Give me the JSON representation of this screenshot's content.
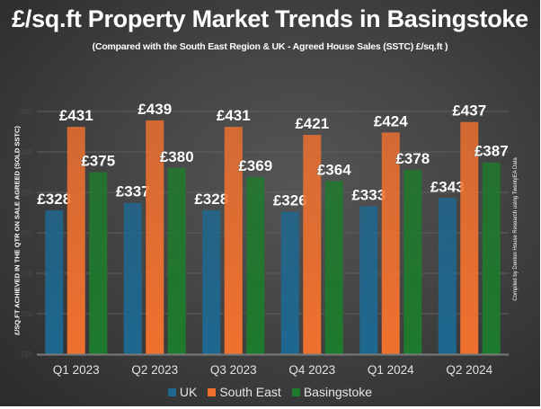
{
  "chart_data": {
    "type": "bar",
    "title": "£/sq.ft Property Market Trends in Basingstoke",
    "subtitle": "(Compared with the South East  Region & UK - Agreed House Sales (SSTC) £/sq.ft )",
    "ylabel": "£/SQ.FT ACHIEVED IN THE QTR ON SALE AGREED (SOLD SSTC)",
    "xlabel": "",
    "credit": "Compiled by Denton House Research using TwentyEA Data",
    "categories": [
      "Q1 2023",
      "Q2 2023",
      "Q3 2023",
      "Q4 2023",
      "Q1 2024",
      "Q2 2024"
    ],
    "series": [
      {
        "name": "UK",
        "color": "#1e6890",
        "values": [
          328,
          337,
          328,
          326,
          333,
          343
        ]
      },
      {
        "name": "South East",
        "color": "#f0712f",
        "values": [
          431,
          439,
          431,
          421,
          424,
          437
        ]
      },
      {
        "name": "Basingstoke",
        "color": "#1e7a2c",
        "values": [
          375,
          380,
          369,
          364,
          378,
          387
        ]
      }
    ],
    "value_prefix": "£",
    "ylim": [
      150,
      450
    ],
    "yticks": [
      150,
      200,
      250,
      300,
      350,
      400,
      450
    ],
    "grid": true,
    "legend": "bottom"
  }
}
